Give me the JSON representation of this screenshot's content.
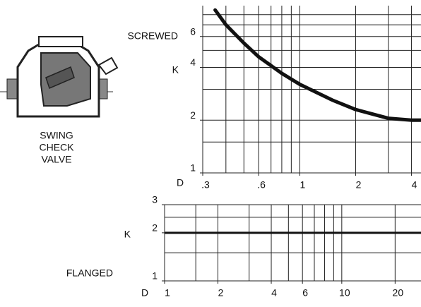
{
  "illustration": {
    "caption": [
      "SWING",
      "CHECK",
      "VALVE"
    ]
  },
  "chart_data": [
    {
      "type": "line",
      "annotation": "SCREWED",
      "xlabel": "D",
      "ylabel": "K",
      "log_x": true,
      "log_y": true,
      "grid": true,
      "color": "#111111",
      "x": [
        0.35,
        0.4,
        0.5,
        0.6,
        0.8,
        1,
        1.5,
        2,
        3,
        4,
        4.5
      ],
      "values": [
        8.5,
        7,
        5.5,
        4.6,
        3.7,
        3.2,
        2.6,
        2.3,
        2.05,
        2.0,
        2.0
      ],
      "xlim": [
        0.3,
        4.5
      ],
      "ylim": [
        1,
        9
      ],
      "xticks": [
        {
          "value": 0.3,
          "label": ".3"
        },
        {
          "value": 0.6,
          "label": ".6"
        },
        1,
        2,
        4
      ],
      "yticks": [
        1,
        2,
        4,
        6
      ],
      "xgrid": [
        0.3,
        0.4,
        0.5,
        0.6,
        0.7,
        0.8,
        0.9,
        1,
        2,
        3,
        4
      ],
      "ygrid": [
        1,
        1.5,
        2,
        3,
        4,
        5,
        6,
        7,
        8
      ]
    },
    {
      "type": "line",
      "annotation": "FLANGED",
      "xlabel": "D",
      "ylabel": "K",
      "log_x": true,
      "log_y": true,
      "grid": true,
      "color": "#111111",
      "x": [
        1,
        28
      ],
      "values": [
        2,
        2
      ],
      "xlim": [
        1,
        28
      ],
      "ylim": [
        1,
        3
      ],
      "xticks": [
        1,
        2,
        4,
        6,
        10,
        20
      ],
      "yticks": [
        1,
        2,
        3
      ],
      "xgrid": [
        1,
        1.5,
        2,
        3,
        4,
        5,
        6,
        7,
        8,
        9,
        10,
        20
      ],
      "ygrid": [
        1,
        1.5,
        2,
        2.5,
        3
      ]
    }
  ]
}
